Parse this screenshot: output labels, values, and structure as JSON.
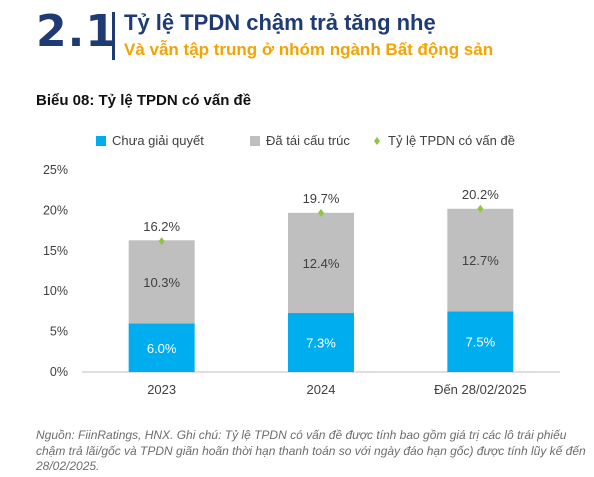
{
  "header": {
    "section_number": "2.1",
    "title": "Tỷ lệ TPDN chậm trả tăng nhẹ",
    "subtitle": "Và vẫn tập trung ở nhóm ngành Bất động sản"
  },
  "chart_title": "Biểu 08: Tỷ lệ TPDN có vấn đề",
  "note": "Nguồn: FiinRatings, HNX. Ghi chú: Tỷ lệ TPDN có vấn đề được tính bao gồm giá trị các lô trái phiếu chậm trả lãi/gốc và TPDN giãn hoãn thời hạn thanh toán so với ngày đáo hạn gốc) được tính lũy kế đến 28/02/2025.",
  "colors": {
    "series1": "#00aeef",
    "series2": "#bfbfbf",
    "marker": "#8dc63f",
    "title": "#1f3b73",
    "subtitle": "#f5a300"
  },
  "chart_data": {
    "type": "bar",
    "stacked": true,
    "categories": [
      "2023",
      "2024",
      "Đến 28/02/2025"
    ],
    "series": [
      {
        "name": "Chưa giải quyết",
        "values": [
          6.0,
          7.3,
          7.5
        ],
        "labels": [
          "6.0%",
          "7.3%",
          "7.5%"
        ]
      },
      {
        "name": "Đã tái cấu trúc",
        "values": [
          10.3,
          12.4,
          12.7
        ],
        "labels": [
          "10.3%",
          "12.4%",
          "12.7%"
        ]
      },
      {
        "name": "Tỷ lệ TPDN có vấn đề",
        "type": "scatter",
        "values": [
          16.2,
          19.7,
          20.2
        ],
        "labels": [
          "16.2%",
          "19.7%",
          "20.2%"
        ]
      }
    ],
    "y_ticks": [
      "0%",
      "5%",
      "10%",
      "15%",
      "20%",
      "25%"
    ],
    "ylim": [
      0,
      25
    ],
    "grid": false,
    "legend_position": "top"
  }
}
